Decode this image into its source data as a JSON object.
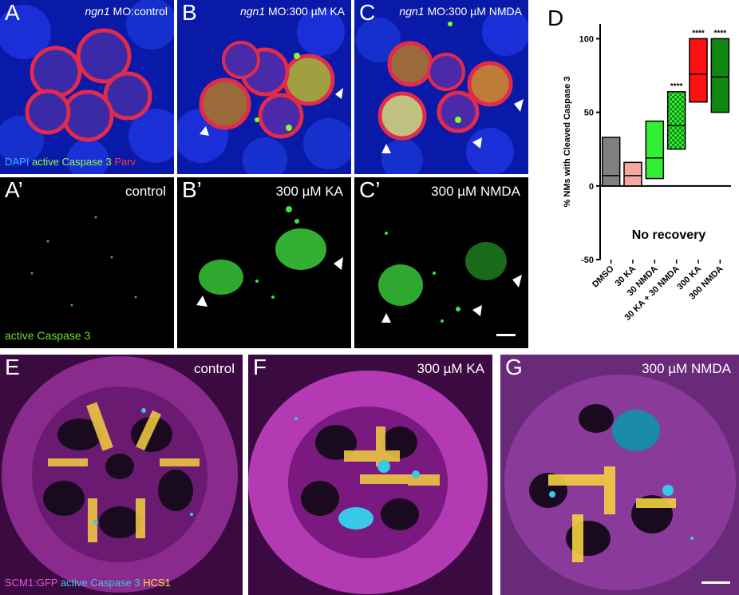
{
  "panels_top": [
    {
      "letter": "A",
      "title_italic": "ngn1",
      "title_rest": " MO:control"
    },
    {
      "letter": "B",
      "title_italic": "ngn1",
      "title_rest": " MO:300 µM KA"
    },
    {
      "letter": "C",
      "title_italic": "ngn1",
      "title_rest": " MO:300 µM NMDA"
    }
  ],
  "panels_mid": [
    {
      "letter": "A’",
      "condition": "control"
    },
    {
      "letter": "B’",
      "condition": "300 µM KA"
    },
    {
      "letter": "C’",
      "condition": "300 µM NMDA"
    }
  ],
  "legend_top": {
    "dapi": "DAPI",
    "caspase": "active Caspase 3",
    "parv": "Parv"
  },
  "legend_mid": "active Caspase 3",
  "panels_bottom": [
    {
      "letter": "E",
      "condition": "control"
    },
    {
      "letter": "F",
      "condition": "300 µM KA"
    },
    {
      "letter": "G",
      "condition": "300 µM NMDA"
    }
  ],
  "legend_bottom": {
    "gfp": "SCM1:GFP",
    "caspase": "active Caspase 3",
    "hcs1": "HCS1"
  },
  "colors": {
    "dapi": "#2c49ff",
    "caspase_top": "#7cff2a",
    "parv": "#ff2a2a",
    "gfp": "#d94cd6",
    "caspase_bottom": "#38c8e8",
    "hcs1": "#ffe030"
  },
  "panel_D": {
    "letter": "D"
  },
  "chart_data": {
    "type": "floating-bar",
    "ylabel": "% NMs with Cleaved Caspase 3",
    "annotation": "No recovery",
    "ylim": [
      -50,
      110
    ],
    "yticks": [
      -50,
      0,
      50,
      100
    ],
    "categories": [
      "DMSO",
      "30 KA",
      "30 NMDA",
      "30 KA + 30 NMDA",
      "300 KA",
      "300 NMDA"
    ],
    "min": [
      0,
      0,
      5,
      25,
      57,
      50
    ],
    "max": [
      33,
      16,
      44,
      64,
      100,
      100
    ],
    "median": [
      7,
      7,
      19,
      41,
      76,
      74
    ],
    "significance": [
      "",
      "",
      "",
      "****",
      "****",
      "****"
    ],
    "fill": [
      "#808080",
      "#f4a8a0",
      "#33ee33",
      "#33ee33",
      "#ff1111",
      "#118811"
    ],
    "pattern": [
      false,
      false,
      false,
      true,
      false,
      false
    ]
  }
}
